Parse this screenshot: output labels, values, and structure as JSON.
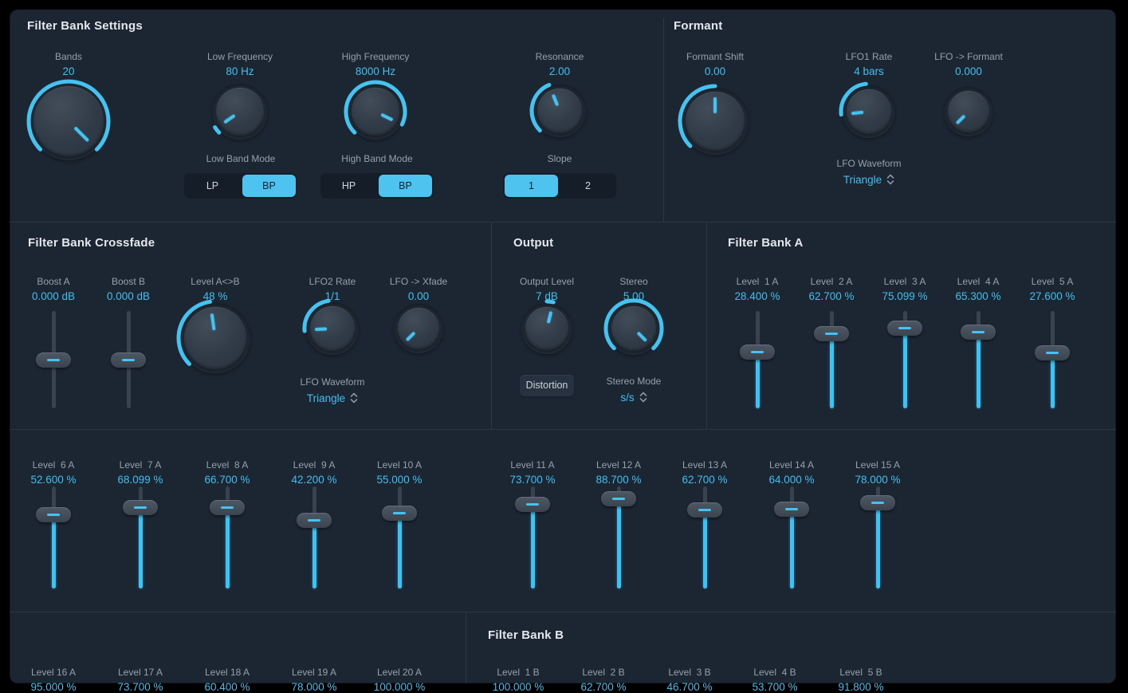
{
  "colors": {
    "background": "#1c2633",
    "accent": "#45c2f0",
    "value_text": "#41bfee",
    "label_text": "#96a0ab",
    "title_text": "#e4e8ec"
  },
  "plugin": {
    "sections": {
      "filter_bank_settings": {
        "title": "Filter Bank Settings",
        "bands": {
          "label": "Bands",
          "value": "20"
        },
        "low_frequency": {
          "label": "Low Frequency",
          "value": "80 Hz"
        },
        "high_frequency": {
          "label": "High Frequency",
          "value": "8000 Hz"
        },
        "resonance": {
          "label": "Resonance",
          "value": "2.00"
        },
        "low_band_mode": {
          "label": "Low Band Mode",
          "options": [
            "LP",
            "BP"
          ],
          "selected": "BP"
        },
        "high_band_mode": {
          "label": "High Band Mode",
          "options": [
            "HP",
            "BP"
          ],
          "selected": "BP"
        },
        "slope": {
          "label": "Slope",
          "options": [
            "1",
            "2"
          ],
          "selected": "1"
        }
      },
      "formant": {
        "title": "Formant",
        "formant_shift": {
          "label": "Formant Shift",
          "value": "0.00"
        },
        "lfo1_rate": {
          "label": "LFO1 Rate",
          "value": "4 bars"
        },
        "lfo_to_formant": {
          "label": "LFO -> Formant",
          "value": "0.000"
        },
        "lfo_waveform": {
          "label": "LFO Waveform",
          "value": "Triangle"
        }
      },
      "filter_bank_crossfade": {
        "title": "Filter Bank Crossfade",
        "boost_a": {
          "label": "Boost A",
          "value": "0.000 dB"
        },
        "boost_b": {
          "label": "Boost B",
          "value": "0.000 dB"
        },
        "level_a_b": {
          "label": "Level A<>B",
          "value": "48 %"
        },
        "lfo2_rate": {
          "label": "LFO2 Rate",
          "value": "1/1"
        },
        "lfo_to_xfade": {
          "label": "LFO -> Xfade",
          "value": "0.00"
        },
        "lfo_waveform": {
          "label": "LFO Waveform",
          "value": "Triangle"
        }
      },
      "output": {
        "title": "Output",
        "output_level": {
          "label": "Output Level",
          "value": "7 dB"
        },
        "stereo": {
          "label": "Stereo",
          "value": "5.00"
        },
        "distortion": {
          "label": "Distortion"
        },
        "stereo_mode": {
          "label": "Stereo Mode",
          "value": "s/s"
        }
      },
      "filter_bank_a": {
        "title": "Filter Bank A",
        "levels": [
          {
            "label": "Level  1 A",
            "value": "28.400 %"
          },
          {
            "label": "Level  2 A",
            "value": "62.700 %"
          },
          {
            "label": "Level  3 A",
            "value": "75.099 %"
          },
          {
            "label": "Level  4 A",
            "value": "65.300 %"
          },
          {
            "label": "Level  5 A",
            "value": "27.600 %"
          },
          {
            "label": "Level  6 A",
            "value": "52.600 %"
          },
          {
            "label": "Level  7 A",
            "value": "68.099 %"
          },
          {
            "label": "Level  8 A",
            "value": "66.700 %"
          },
          {
            "label": "Level  9 A",
            "value": "42.200 %"
          },
          {
            "label": "Level 10 A",
            "value": "55.000 %"
          },
          {
            "label": "Level 11 A",
            "value": "73.700 %"
          },
          {
            "label": "Level 12 A",
            "value": "88.700 %"
          },
          {
            "label": "Level 13 A",
            "value": "62.700 %"
          },
          {
            "label": "Level 14 A",
            "value": "64.000 %"
          },
          {
            "label": "Level 15 A",
            "value": "78.000 %"
          },
          {
            "label": "Level 16 A",
            "value": "95.000 %"
          },
          {
            "label": "Level 17 A",
            "value": "73.700 %"
          },
          {
            "label": "Level 18 A",
            "value": "60.400 %"
          },
          {
            "label": "Level 19 A",
            "value": "78.000 %"
          },
          {
            "label": "Level 20 A",
            "value": "100.000 %"
          }
        ]
      },
      "filter_bank_b": {
        "title": "Filter Bank B",
        "levels": [
          {
            "label": "Level  1 B",
            "value": "100.000 %"
          },
          {
            "label": "Level  2 B",
            "value": "62.700 %"
          },
          {
            "label": "Level  3 B",
            "value": "46.700 %"
          },
          {
            "label": "Level  4 B",
            "value": "53.700 %"
          },
          {
            "label": "Level  5 B",
            "value": "91.800 %"
          }
        ]
      }
    }
  }
}
